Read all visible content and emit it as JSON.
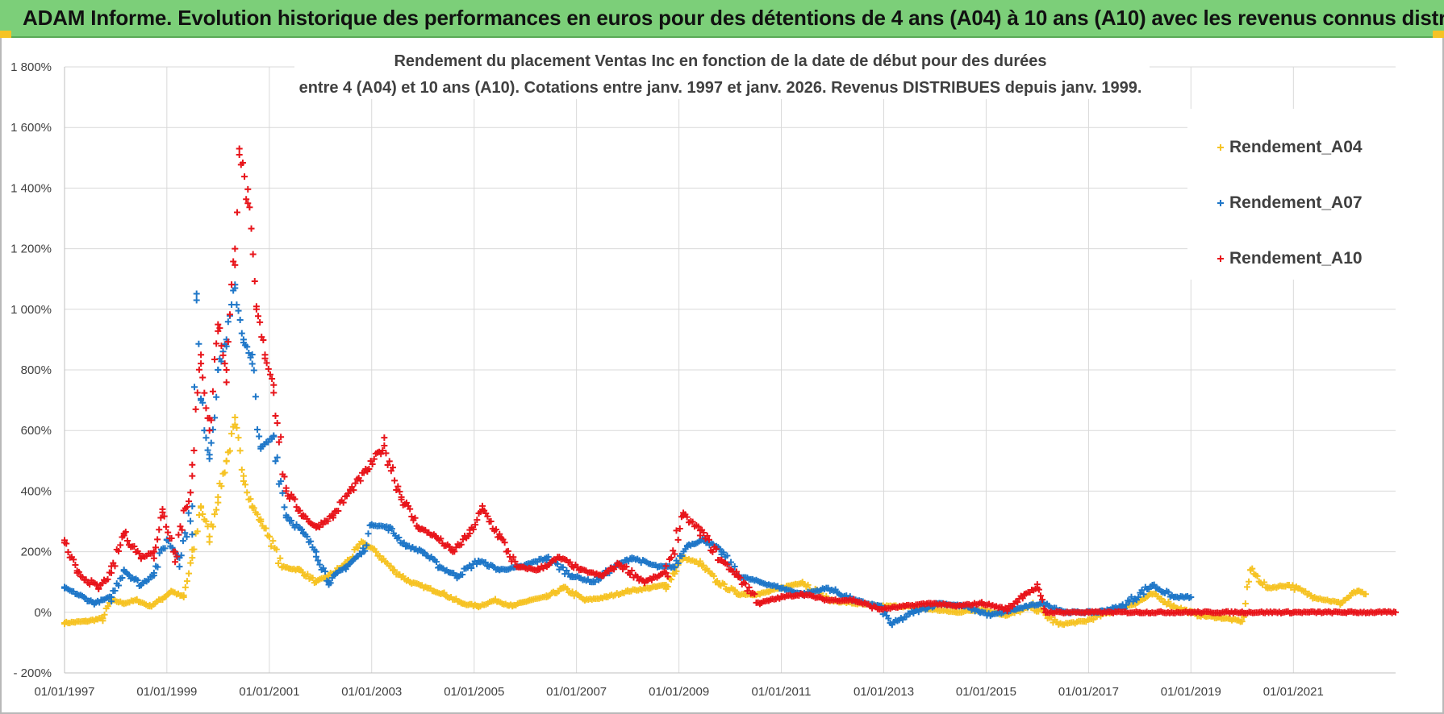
{
  "banner": {
    "text": "ADAM Informe. Evolution historique des performances en euros pour des détentions de 4 ans (A04) à 10 ans (A10) avec les revenus connus distribués",
    "color": "#7ccf79"
  },
  "chart_data": {
    "type": "scatter",
    "title_line1": "Rendement du placement Ventas Inc en fonction de la date de début pour des durées",
    "title_line2": "entre 4 (A04) et 10 ans (A10).  Cotations entre janv. 1997 et janv. 2026. Revenus DISTRIBUES  depuis janv. 1999.",
    "xlabel": "",
    "ylabel": "",
    "x_range": [
      "1997-01-01",
      "2022-12-31"
    ],
    "ylim": [
      -200,
      1800
    ],
    "y_ticks": [
      -200,
      0,
      200,
      400,
      600,
      800,
      1000,
      1200,
      1400,
      1600,
      1800
    ],
    "y_tick_labels": [
      "- 200%",
      "0%",
      "200%",
      "400%",
      "600%",
      "800%",
      "1 000%",
      "1 200%",
      "1 400%",
      "1 600%",
      "1 800%"
    ],
    "x_tick_labels": [
      "01/01/1997",
      "01/01/1999",
      "01/01/2001",
      "01/01/2003",
      "01/01/2005",
      "01/01/2007",
      "01/01/2009",
      "01/01/2011",
      "01/01/2013",
      "01/01/2015",
      "01/01/2017",
      "01/01/2019",
      "01/01/2021"
    ],
    "x_tick_dates": [
      "1997-01-01",
      "1999-01-01",
      "2001-01-01",
      "2003-01-01",
      "2005-01-01",
      "2007-01-01",
      "2009-01-01",
      "2011-01-01",
      "2013-01-01",
      "2015-01-01",
      "2017-01-01",
      "2019-01-01",
      "2021-01-01"
    ],
    "grid": true,
    "legend_position": "top-right",
    "marker": "+",
    "series": [
      {
        "name": "Rendement_A04",
        "color": "#f6c324",
        "points": [
          [
            "1997-01-01",
            -35
          ],
          [
            "1997-06-01",
            -30
          ],
          [
            "1997-10-01",
            -20
          ],
          [
            "1997-12-01",
            40
          ],
          [
            "1998-03-01",
            30
          ],
          [
            "1998-06-01",
            40
          ],
          [
            "1998-09-01",
            20
          ],
          [
            "1998-12-01",
            45
          ],
          [
            "1999-02-01",
            70
          ],
          [
            "1999-05-01",
            50
          ],
          [
            "1999-07-01",
            180
          ],
          [
            "1999-09-01",
            350
          ],
          [
            "1999-11-01",
            250
          ],
          [
            "2000-01-01",
            380
          ],
          [
            "2000-03-01",
            500
          ],
          [
            "2000-05-01",
            620
          ],
          [
            "2000-07-01",
            450
          ],
          [
            "2000-09-01",
            350
          ],
          [
            "2000-11-01",
            300
          ],
          [
            "2001-01-01",
            250
          ],
          [
            "2001-04-01",
            150
          ],
          [
            "2001-08-01",
            140
          ],
          [
            "2001-12-01",
            100
          ],
          [
            "2002-03-01",
            120
          ],
          [
            "2002-07-01",
            160
          ],
          [
            "2002-11-01",
            230
          ],
          [
            "2003-02-01",
            200
          ],
          [
            "2003-06-01",
            140
          ],
          [
            "2003-10-01",
            100
          ],
          [
            "2004-02-01",
            80
          ],
          [
            "2004-06-01",
            60
          ],
          [
            "2004-10-01",
            30
          ],
          [
            "2005-02-01",
            20
          ],
          [
            "2005-06-01",
            40
          ],
          [
            "2005-10-01",
            20
          ],
          [
            "2006-02-01",
            40
          ],
          [
            "2006-06-01",
            50
          ],
          [
            "2006-10-01",
            80
          ],
          [
            "2007-03-01",
            40
          ],
          [
            "2007-08-01",
            50
          ],
          [
            "2008-01-01",
            70
          ],
          [
            "2008-06-01",
            80
          ],
          [
            "2008-10-01",
            90
          ],
          [
            "2009-02-01",
            180
          ],
          [
            "2009-06-01",
            160
          ],
          [
            "2009-10-01",
            100
          ],
          [
            "2010-03-01",
            60
          ],
          [
            "2010-08-01",
            60
          ],
          [
            "2011-01-01",
            80
          ],
          [
            "2011-06-01",
            100
          ],
          [
            "2011-12-01",
            40
          ],
          [
            "2012-06-01",
            30
          ],
          [
            "2012-12-01",
            20
          ],
          [
            "2013-06-01",
            20
          ],
          [
            "2013-12-01",
            10
          ],
          [
            "2014-06-01",
            0
          ],
          [
            "2014-12-01",
            10
          ],
          [
            "2015-06-01",
            -10
          ],
          [
            "2015-12-01",
            20
          ],
          [
            "2016-06-01",
            -40
          ],
          [
            "2016-12-01",
            -30
          ],
          [
            "2017-06-01",
            0
          ],
          [
            "2017-12-01",
            30
          ],
          [
            "2018-04-01",
            60
          ],
          [
            "2018-09-01",
            20
          ],
          [
            "2019-03-01",
            -10
          ],
          [
            "2019-09-01",
            -20
          ],
          [
            "2020-01-01",
            -30
          ],
          [
            "2020-03-01",
            140
          ],
          [
            "2020-07-01",
            80
          ],
          [
            "2020-12-01",
            90
          ],
          [
            "2021-06-01",
            50
          ],
          [
            "2021-12-01",
            30
          ],
          [
            "2022-04-01",
            70
          ],
          [
            "2022-06-01",
            60
          ]
        ]
      },
      {
        "name": "Rendement_A07",
        "color": "#1f77c8",
        "points": [
          [
            "1997-01-01",
            80
          ],
          [
            "1997-04-01",
            60
          ],
          [
            "1997-08-01",
            30
          ],
          [
            "1997-12-01",
            50
          ],
          [
            "1998-03-01",
            140
          ],
          [
            "1998-07-01",
            90
          ],
          [
            "1998-10-01",
            130
          ],
          [
            "1999-01-01",
            240
          ],
          [
            "1999-04-01",
            180
          ],
          [
            "1999-07-01",
            350
          ],
          [
            "1999-08-01",
            1030
          ],
          [
            "1999-09-01",
            700
          ],
          [
            "1999-11-01",
            520
          ],
          [
            "2000-01-01",
            800
          ],
          [
            "2000-03-01",
            900
          ],
          [
            "2000-05-01",
            1070
          ],
          [
            "2000-07-01",
            900
          ],
          [
            "2000-09-01",
            820
          ],
          [
            "2000-11-01",
            540
          ],
          [
            "2001-02-01",
            580
          ],
          [
            "2001-05-01",
            320
          ],
          [
            "2001-09-01",
            260
          ],
          [
            "2001-12-01",
            200
          ],
          [
            "2002-03-01",
            100
          ],
          [
            "2002-07-01",
            150
          ],
          [
            "2002-11-01",
            200
          ],
          [
            "2003-01-01",
            290
          ],
          [
            "2003-05-01",
            280
          ],
          [
            "2003-09-01",
            220
          ],
          [
            "2004-01-01",
            200
          ],
          [
            "2004-05-01",
            150
          ],
          [
            "2004-09-01",
            120
          ],
          [
            "2005-02-01",
            170
          ],
          [
            "2005-07-01",
            140
          ],
          [
            "2005-12-01",
            150
          ],
          [
            "2006-06-01",
            180
          ],
          [
            "2006-12-01",
            120
          ],
          [
            "2007-05-01",
            100
          ],
          [
            "2007-10-01",
            150
          ],
          [
            "2008-02-01",
            180
          ],
          [
            "2008-08-01",
            150
          ],
          [
            "2008-12-01",
            150
          ],
          [
            "2009-03-01",
            220
          ],
          [
            "2009-07-01",
            240
          ],
          [
            "2009-11-01",
            200
          ],
          [
            "2010-03-01",
            120
          ],
          [
            "2010-08-01",
            100
          ],
          [
            "2011-01-01",
            80
          ],
          [
            "2011-06-01",
            60
          ],
          [
            "2011-12-01",
            80
          ],
          [
            "2012-06-01",
            40
          ],
          [
            "2012-12-01",
            20
          ],
          [
            "2013-03-01",
            -40
          ],
          [
            "2013-08-01",
            0
          ],
          [
            "2014-02-01",
            30
          ],
          [
            "2014-08-01",
            20
          ],
          [
            "2015-02-01",
            -10
          ],
          [
            "2015-08-01",
            10
          ],
          [
            "2016-02-01",
            30
          ],
          [
            "2016-08-01",
            0
          ],
          [
            "2017-03-01",
            0
          ],
          [
            "2017-09-01",
            20
          ],
          [
            "2018-04-01",
            90
          ],
          [
            "2018-09-01",
            50
          ],
          [
            "2019-01-01",
            50
          ]
        ]
      },
      {
        "name": "Rendement_A10",
        "color": "#e8151b",
        "points": [
          [
            "1997-01-01",
            230
          ],
          [
            "1997-04-01",
            130
          ],
          [
            "1997-09-01",
            80
          ],
          [
            "1997-12-01",
            130
          ],
          [
            "1998-03-01",
            260
          ],
          [
            "1998-07-01",
            180
          ],
          [
            "1998-10-01",
            200
          ],
          [
            "1998-12-01",
            330
          ],
          [
            "1999-03-01",
            200
          ],
          [
            "1999-07-01",
            450
          ],
          [
            "1999-09-01",
            850
          ],
          [
            "1999-11-01",
            600
          ],
          [
            "2000-01-01",
            950
          ],
          [
            "2000-03-01",
            800
          ],
          [
            "2000-05-01",
            1200
          ],
          [
            "2000-06-01",
            1530
          ],
          [
            "2000-08-01",
            1350
          ],
          [
            "2000-10-01",
            1000
          ],
          [
            "2000-12-01",
            850
          ],
          [
            "2001-02-01",
            750
          ],
          [
            "2001-05-01",
            400
          ],
          [
            "2001-09-01",
            320
          ],
          [
            "2001-12-01",
            280
          ],
          [
            "2002-04-01",
            320
          ],
          [
            "2002-08-01",
            400
          ],
          [
            "2002-12-01",
            470
          ],
          [
            "2003-04-01",
            550
          ],
          [
            "2003-08-01",
            380
          ],
          [
            "2003-12-01",
            280
          ],
          [
            "2004-04-01",
            250
          ],
          [
            "2004-08-01",
            200
          ],
          [
            "2004-12-01",
            260
          ],
          [
            "2005-03-01",
            340
          ],
          [
            "2005-07-01",
            250
          ],
          [
            "2005-11-01",
            150
          ],
          [
            "2006-04-01",
            140
          ],
          [
            "2006-09-01",
            180
          ],
          [
            "2007-02-01",
            140
          ],
          [
            "2007-07-01",
            120
          ],
          [
            "2007-11-01",
            160
          ],
          [
            "2008-05-01",
            100
          ],
          [
            "2008-10-01",
            130
          ],
          [
            "2009-02-01",
            320
          ],
          [
            "2009-06-01",
            270
          ],
          [
            "2009-11-01",
            170
          ],
          [
            "2010-03-01",
            120
          ],
          [
            "2010-08-01",
            30
          ],
          [
            "2011-01-01",
            50
          ],
          [
            "2011-06-01",
            60
          ],
          [
            "2011-12-01",
            40
          ],
          [
            "2012-06-01",
            40
          ],
          [
            "2012-12-01",
            10
          ],
          [
            "2013-06-01",
            20
          ],
          [
            "2013-12-01",
            30
          ],
          [
            "2014-06-01",
            20
          ],
          [
            "2014-12-01",
            30
          ],
          [
            "2015-06-01",
            10
          ],
          [
            "2015-10-01",
            60
          ],
          [
            "2016-01-01",
            80
          ],
          [
            "2016-03-01",
            0
          ],
          [
            "2017-01-01",
            0
          ],
          [
            "2018-01-01",
            0
          ],
          [
            "2019-01-01",
            0
          ],
          [
            "2020-01-01",
            0
          ],
          [
            "2021-01-01",
            0
          ],
          [
            "2022-01-01",
            0
          ],
          [
            "2022-12-31",
            0
          ]
        ]
      }
    ]
  }
}
